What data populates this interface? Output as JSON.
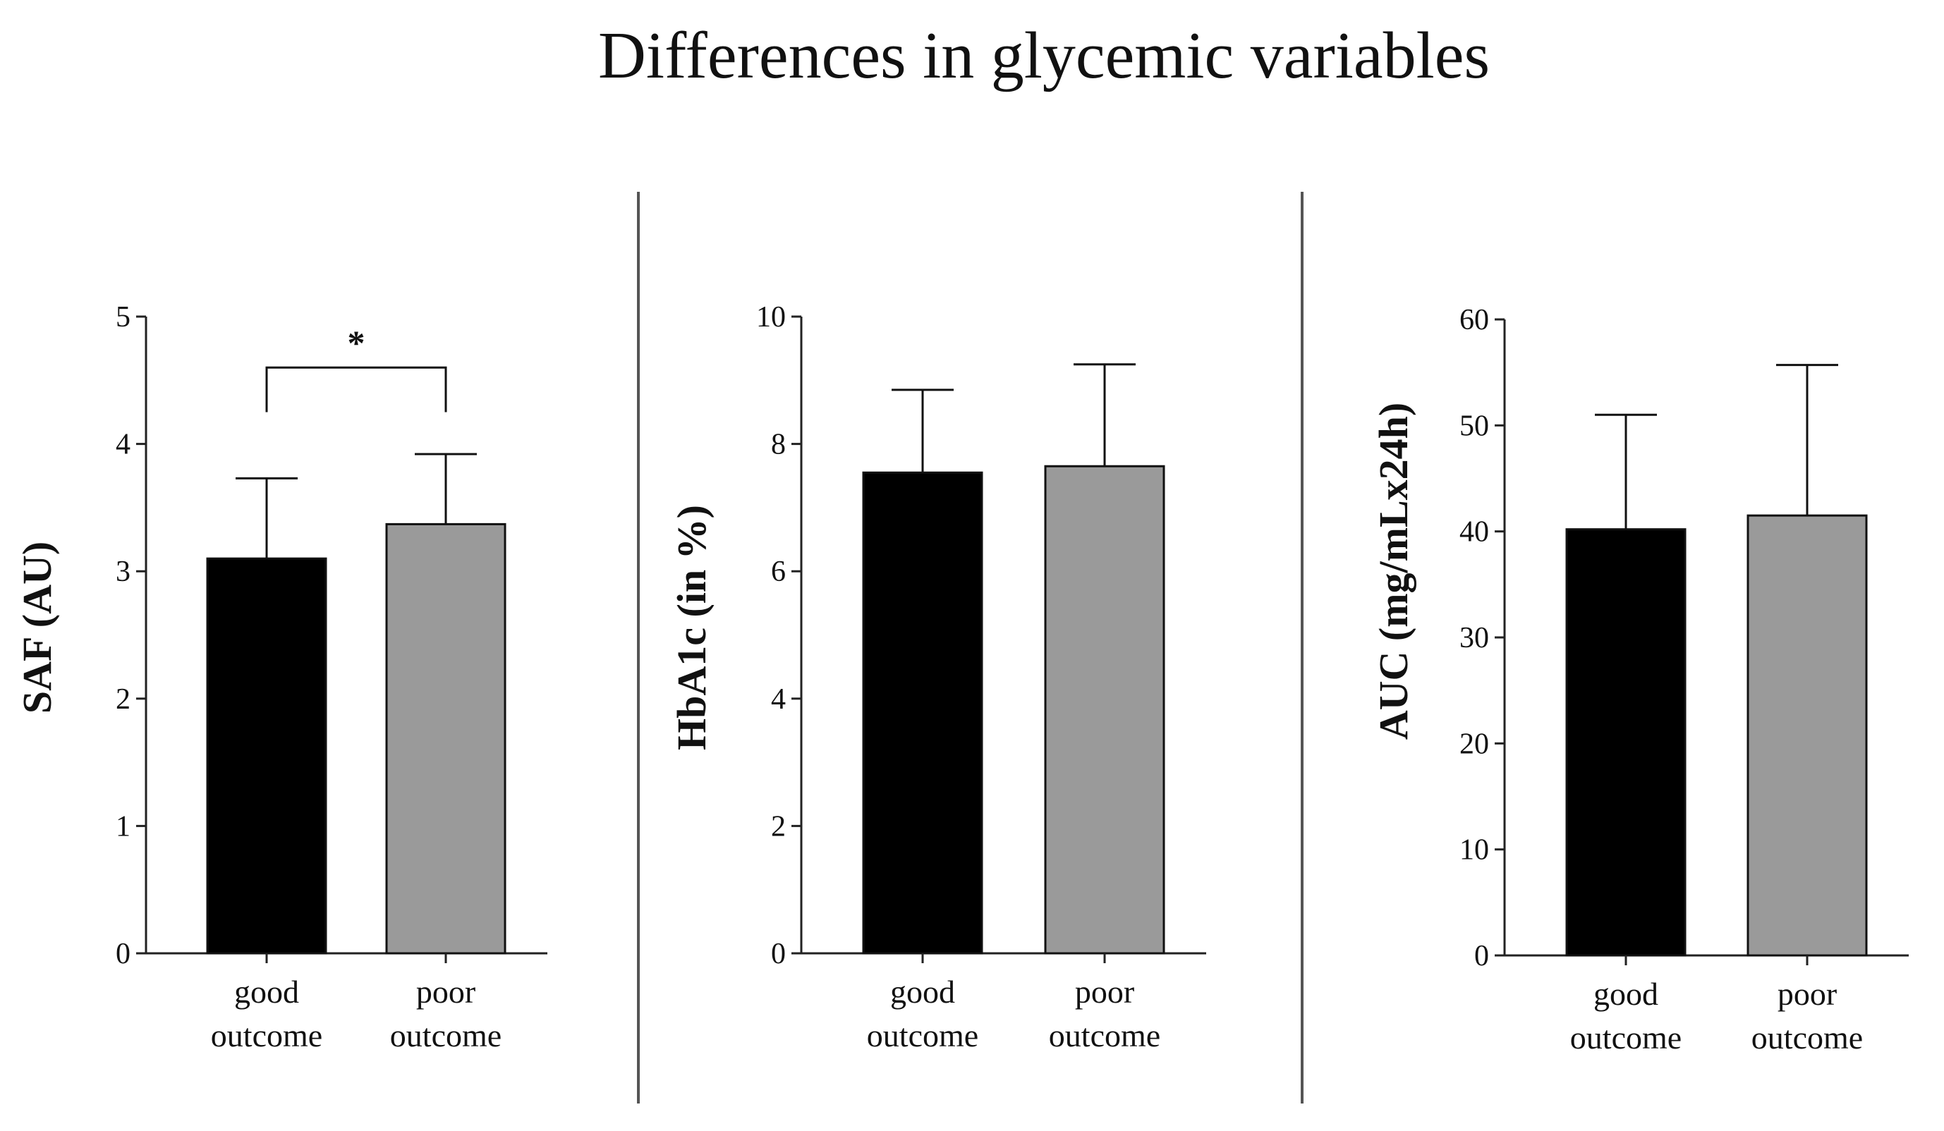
{
  "figure": {
    "title": "Differences in glycemic variables"
  },
  "colors": {
    "bar_good": "#000000",
    "bar_poor": "#9a9a9a",
    "axis": "#222222",
    "divider": "#555555"
  },
  "chart_data": [
    {
      "type": "bar",
      "title": "",
      "ylabel": "SAF (AU)",
      "categories": [
        {
          "line1": "good",
          "line2": "outcome"
        },
        {
          "line1": "poor",
          "line2": "outcome"
        }
      ],
      "values": [
        3.1,
        3.37
      ],
      "error_plus": [
        0.63,
        0.55
      ],
      "ylim": [
        0,
        5
      ],
      "yticks": [
        0,
        1,
        2,
        3,
        4,
        5
      ],
      "ytick_labels": [
        "0",
        "1",
        "2",
        "3",
        "4",
        "5"
      ],
      "significance": {
        "label": "*",
        "bracket_y": 4.6,
        "left_drop_to": 4.25,
        "right_drop_to": 4.25
      }
    },
    {
      "type": "bar",
      "title": "",
      "ylabel": "HbA1c (in %)",
      "categories": [
        {
          "line1": "good",
          "line2": "outcome"
        },
        {
          "line1": "poor",
          "line2": "outcome"
        }
      ],
      "values": [
        7.55,
        7.65
      ],
      "error_plus": [
        1.3,
        1.6
      ],
      "ylim": [
        0,
        10
      ],
      "yticks": [
        0,
        2,
        4,
        6,
        8,
        10
      ],
      "ytick_labels": [
        "0",
        "2",
        "4",
        "6",
        "8",
        "10"
      ]
    },
    {
      "type": "bar",
      "title": "",
      "ylabel": "AUC (mg/mLx24h)",
      "categories": [
        {
          "line1": "good",
          "line2": "outcome"
        },
        {
          "line1": "poor",
          "line2": "outcome"
        }
      ],
      "values": [
        40.2,
        41.5
      ],
      "error_plus": [
        10.8,
        14.2
      ],
      "ylim": [
        0,
        60
      ],
      "yticks": [
        0,
        10,
        20,
        30,
        40,
        50,
        60
      ],
      "ytick_labels": [
        "0",
        "10",
        "20",
        "30",
        "40",
        "50",
        "60"
      ]
    }
  ]
}
